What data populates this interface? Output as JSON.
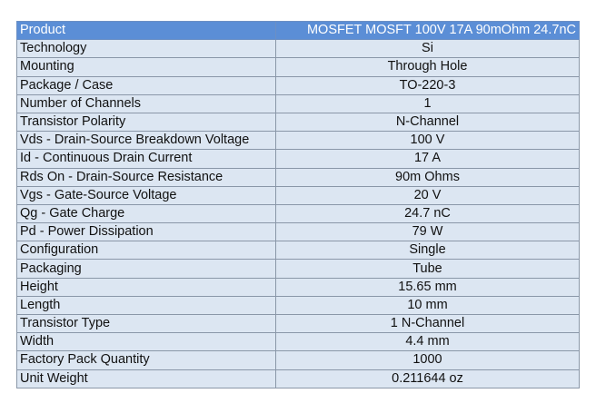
{
  "header": {
    "label": "Product",
    "value": "MOSFET MOSFT 100V 17A 90mOhm 24.7nC"
  },
  "rows": [
    {
      "label": "Technology",
      "value": "Si"
    },
    {
      "label": "Mounting",
      "value": "Through Hole"
    },
    {
      "label": "Package / Case",
      "value": "TO-220-3"
    },
    {
      "label": "Number of Channels",
      "value": "1"
    },
    {
      "label": "Transistor Polarity",
      "value": "N-Channel"
    },
    {
      "label": "Vds - Drain-Source Breakdown Voltage",
      "value": "100 V"
    },
    {
      "label": "Id - Continuous Drain Current",
      "value": "17 A"
    },
    {
      "label": "Rds On - Drain-Source Resistance",
      "value": "90m Ohms"
    },
    {
      "label": "Vgs - Gate-Source Voltage",
      "value": "20 V"
    },
    {
      "label": "Qg - Gate Charge",
      "value": "24.7 nC"
    },
    {
      "label": "Pd - Power Dissipation",
      "value": "79 W"
    },
    {
      "label": "Configuration",
      "value": "Single"
    },
    {
      "label": "Packaging",
      "value": "Tube"
    },
    {
      "label": "Height",
      "value": "15.65 mm"
    },
    {
      "label": "Length",
      "value": "10 mm"
    },
    {
      "label": "Transistor Type",
      "value": "1 N-Channel"
    },
    {
      "label": "Width",
      "value": "4.4 mm"
    },
    {
      "label": "Factory Pack Quantity",
      "value": "1000"
    },
    {
      "label": "Unit Weight",
      "value": "0.211644 oz"
    }
  ]
}
